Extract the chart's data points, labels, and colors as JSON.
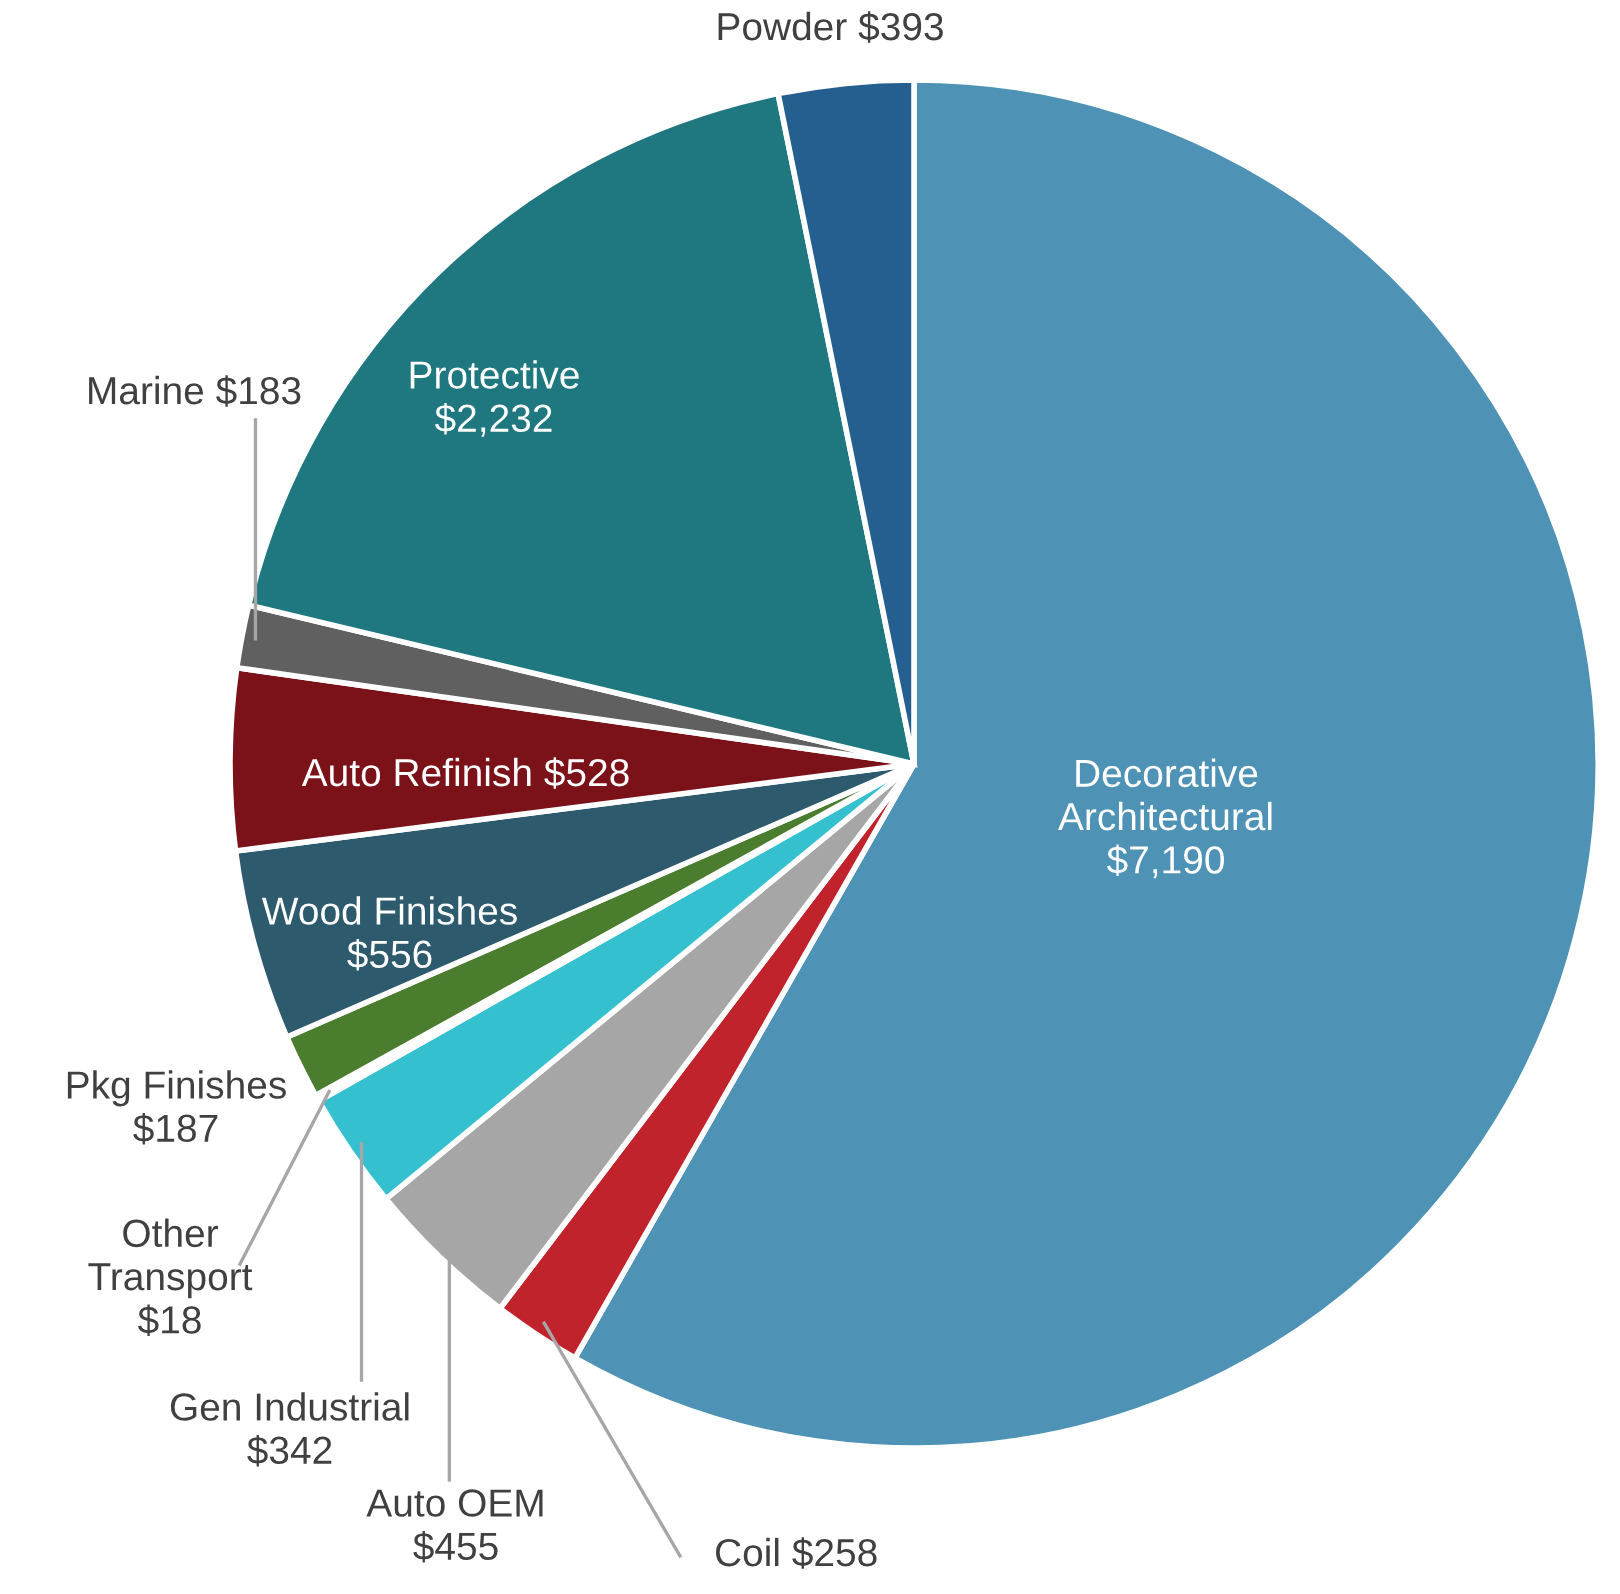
{
  "chart_data": {
    "type": "pie",
    "categories": [
      "Decorative Architectural",
      "Coil",
      "Auto OEM",
      "Gen Industrial",
      "Other Transport",
      "Pkg Finishes",
      "Wood Finishes",
      "Auto Refinish",
      "Marine",
      "Protective",
      "Powder"
    ],
    "values": [
      7190,
      258,
      455,
      342,
      18,
      187,
      556,
      528,
      183,
      2232,
      393
    ],
    "value_labels": [
      "$7,190",
      "$258",
      "$455",
      "$342",
      "$18",
      "$187",
      "$556",
      "$528",
      "$183",
      "$2,232",
      "$393"
    ],
    "colors": [
      "#4e93b5",
      "#c0232c",
      "#a6a6a6",
      "#35c0d0",
      "#ffffff",
      "#4a7d2e",
      "#2e5a6e",
      "#7b1219",
      "#606060",
      "#1f7880",
      "#245f8f"
    ]
  }
}
